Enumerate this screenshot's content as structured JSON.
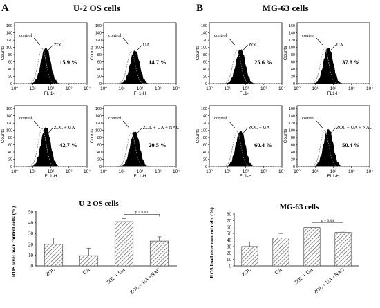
{
  "panel_a": {
    "letter": "A",
    "title": "U-2 OS cells",
    "histograms": [
      {
        "annotation": "ZOL",
        "percent": "15.9 %",
        "xlabel": "FL 1-H"
      },
      {
        "annotation": "UA",
        "percent": "14.7 %",
        "xlabel": "Fl 1-H"
      },
      {
        "annotation": "ZOL + UA",
        "percent": "42.7 %",
        "xlabel": "FL1-H"
      },
      {
        "annotation": "ZOL + UA + NAC",
        "percent": "20.5 %",
        "xlabel": "FL1-H"
      }
    ],
    "bar_title": "U-2 OS cells",
    "p_value": "p = 0.03"
  },
  "panel_b": {
    "letter": "B",
    "title": "MG-63 cells",
    "histograms": [
      {
        "annotation": "ZOL",
        "percent": "25.6 %",
        "xlabel": "FL1-H"
      },
      {
        "annotation": "UA",
        "percent": "37.8 %",
        "xlabel": "FL1-H"
      },
      {
        "annotation": "ZOL + UA",
        "percent": "60.4 %",
        "xlabel": "FL1-H"
      },
      {
        "annotation": "ZOL + UA + NAC",
        "percent": "50.4 %",
        "xlabel": "FL1-H"
      }
    ],
    "bar_title": "MG-63 cells",
    "p_value": "p = 0.04"
  },
  "histogram_common": {
    "control_label": "control",
    "ylabel": "Counts",
    "y_ticks": [
      "0",
      "20",
      "40",
      "60",
      "80",
      "100",
      "120",
      "140",
      "160"
    ],
    "x_ticks": [
      "10⁰",
      "10¹",
      "10²",
      "10³",
      "10⁴"
    ]
  },
  "chart_data": [
    {
      "type": "bar",
      "title": "U-2 OS cells",
      "categories": [
        "ZOL",
        "UA",
        "ZOL + UA",
        "ZOL + UA +NAC"
      ],
      "values": [
        20,
        9.5,
        41,
        23
      ],
      "errors": [
        6,
        7,
        3,
        4
      ],
      "ylabel": "ROS level over control cells (%)",
      "ylim": [
        0,
        50
      ],
      "y_ticks": [
        0,
        10,
        20,
        30,
        40,
        50
      ],
      "annotation": {
        "text": "p = 0.03",
        "between": [
          "ZOL + UA",
          "ZOL + UA +NAC"
        ]
      }
    },
    {
      "type": "bar",
      "title": "MG-63 cells",
      "categories": [
        "ZOL",
        "UA",
        "ZOL + UA",
        "ZOL + UA +NAC"
      ],
      "values": [
        30,
        43,
        59,
        51.5
      ],
      "errors": [
        7,
        7,
        1,
        2
      ],
      "ylabel": "ROS level over control cells (%)",
      "ylim": [
        0,
        80
      ],
      "y_ticks": [
        0,
        10,
        20,
        30,
        40,
        50,
        60,
        70,
        80
      ],
      "annotation": {
        "text": "p = 0.04",
        "between": [
          "ZOL + UA",
          "ZOL + UA +NAC"
        ]
      }
    }
  ]
}
